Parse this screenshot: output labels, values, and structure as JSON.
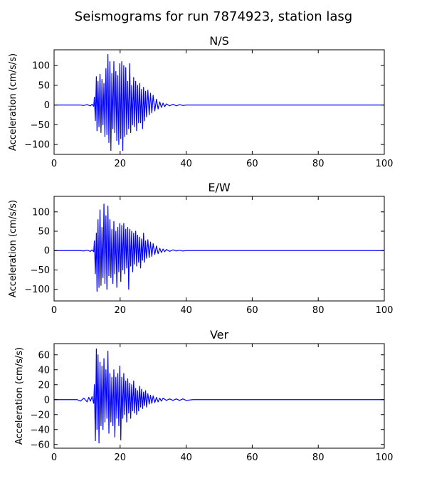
{
  "figure": {
    "title": "Seismograms for run 7874923, station lasg"
  },
  "chart_data": [
    {
      "type": "line",
      "title": "N/S",
      "xlabel": "",
      "ylabel": "Acceleration (cm/s/s)",
      "xlim": [
        0,
        100
      ],
      "ylim": [
        -125,
        140
      ],
      "xticks": [
        0,
        20,
        40,
        60,
        80,
        100
      ],
      "yticks": [
        -100,
        -50,
        0,
        50,
        100
      ],
      "color": "#0000ff",
      "grid": false,
      "series": [
        {
          "x": [
            0,
            8,
            9,
            10,
            11,
            11.5,
            12,
            12.2,
            12.5,
            12.8,
            13.0,
            13.3,
            13.6,
            13.9,
            14.2,
            14.5,
            14.8,
            15.1,
            15.4,
            15.7,
            16.0,
            16.3,
            16.6,
            16.9,
            17.2,
            17.5,
            17.8,
            18.1,
            18.4,
            18.7,
            19.0,
            19.3,
            19.6,
            19.9,
            20.2,
            20.5,
            20.8,
            21.1,
            21.4,
            21.7,
            22.0,
            22.3,
            22.6,
            22.9,
            23.2,
            23.5,
            23.8,
            24.1,
            24.4,
            24.7,
            25.0,
            25.3,
            25.6,
            25.9,
            26.2,
            26.5,
            26.8,
            27.1,
            27.4,
            27.7,
            28.0,
            28.4,
            28.8,
            29.2,
            29.6,
            30.0,
            30.5,
            31.0,
            31.5,
            32.0,
            32.5,
            33.0,
            33.5,
            34.0,
            35,
            36,
            37,
            38,
            39,
            40,
            42,
            45,
            100
          ],
          "y": [
            0,
            0,
            -1,
            1,
            -2,
            2,
            -3,
            20,
            -40,
            72,
            -65,
            60,
            -55,
            78,
            -70,
            65,
            -50,
            55,
            -80,
            92,
            -75,
            128,
            -95,
            110,
            -115,
            80,
            -60,
            110,
            -70,
            85,
            -90,
            75,
            -100,
            105,
            -85,
            110,
            -115,
            100,
            -80,
            95,
            -75,
            60,
            -60,
            105,
            -70,
            50,
            -50,
            70,
            -55,
            60,
            -65,
            50,
            -45,
            55,
            -45,
            40,
            -60,
            45,
            -40,
            35,
            -30,
            38,
            -25,
            30,
            -20,
            25,
            -15,
            15,
            -10,
            8,
            -6,
            5,
            -4,
            3,
            -2,
            2,
            -2,
            1,
            -1,
            0,
            0,
            0,
            0
          ]
        }
      ]
    },
    {
      "type": "line",
      "title": "E/W",
      "xlabel": "",
      "ylabel": "Acceleration (cm/s/s)",
      "xlim": [
        0,
        100
      ],
      "ylim": [
        -130,
        140
      ],
      "xticks": [
        0,
        20,
        40,
        60,
        80,
        100
      ],
      "yticks": [
        -100,
        -50,
        0,
        50,
        100
      ],
      "color": "#0000ff",
      "grid": false,
      "series": [
        {
          "x": [
            0,
            8,
            9,
            10,
            11,
            11.5,
            12,
            12.2,
            12.5,
            12.8,
            13.0,
            13.3,
            13.6,
            13.9,
            14.2,
            14.5,
            14.8,
            15.1,
            15.4,
            15.7,
            16.0,
            16.3,
            16.6,
            16.9,
            17.2,
            17.5,
            17.8,
            18.1,
            18.4,
            18.7,
            19.0,
            19.3,
            19.6,
            19.9,
            20.2,
            20.5,
            20.8,
            21.1,
            21.4,
            21.7,
            22.0,
            22.3,
            22.6,
            22.9,
            23.2,
            23.5,
            23.8,
            24.1,
            24.4,
            24.7,
            25.0,
            25.3,
            25.6,
            25.9,
            26.2,
            26.5,
            26.8,
            27.1,
            27.4,
            27.7,
            28.0,
            28.4,
            28.8,
            29.2,
            29.6,
            30.0,
            30.5,
            31.0,
            31.5,
            32.0,
            32.5,
            33.0,
            33.5,
            34.0,
            35,
            36,
            37,
            38,
            39,
            40,
            42,
            45,
            100
          ],
          "y": [
            0,
            0,
            -1,
            1,
            -2,
            2,
            -3,
            25,
            -60,
            45,
            -105,
            80,
            -95,
            105,
            -90,
            60,
            -70,
            120,
            -85,
            90,
            -100,
            115,
            -65,
            80,
            -70,
            55,
            -85,
            75,
            -60,
            50,
            -95,
            60,
            -55,
            70,
            -80,
            65,
            -50,
            70,
            -60,
            55,
            -45,
            60,
            -100,
            55,
            -40,
            50,
            -55,
            45,
            -35,
            50,
            -40,
            40,
            -30,
            35,
            -45,
            30,
            -25,
            45,
            -30,
            25,
            -20,
            28,
            -18,
            22,
            -15,
            18,
            -10,
            12,
            -8,
            6,
            -5,
            4,
            -3,
            3,
            -2,
            2,
            -1,
            1,
            -1,
            0,
            0,
            0,
            0
          ]
        }
      ]
    },
    {
      "type": "line",
      "title": "Ver",
      "xlabel": "",
      "ylabel": "Acceleration (cm/s/s)",
      "xlim": [
        0,
        100
      ],
      "ylim": [
        -65,
        75
      ],
      "xticks": [
        0,
        20,
        40,
        60,
        80,
        100
      ],
      "yticks": [
        -60,
        -40,
        -20,
        0,
        20,
        40,
        60
      ],
      "color": "#0000ff",
      "grid": false,
      "series": [
        {
          "x": [
            0,
            7,
            8,
            9,
            10,
            10.5,
            11,
            11.5,
            12,
            12.2,
            12.5,
            12.8,
            13.0,
            13.3,
            13.6,
            13.9,
            14.2,
            14.5,
            14.8,
            15.1,
            15.4,
            15.7,
            16.0,
            16.3,
            16.6,
            16.9,
            17.2,
            17.5,
            17.8,
            18.1,
            18.4,
            18.7,
            19.0,
            19.3,
            19.6,
            19.9,
            20.2,
            20.5,
            20.8,
            21.1,
            21.4,
            21.7,
            22.0,
            22.3,
            22.6,
            22.9,
            23.2,
            23.5,
            23.8,
            24.1,
            24.4,
            24.7,
            25.0,
            25.3,
            25.6,
            25.9,
            26.2,
            26.5,
            26.8,
            27.1,
            27.4,
            27.7,
            28.0,
            28.4,
            28.8,
            29.2,
            29.6,
            30.0,
            30.5,
            31.0,
            31.5,
            32.0,
            32.5,
            33.0,
            34,
            35,
            36,
            37,
            38,
            39,
            40,
            42,
            44,
            100
          ],
          "y": [
            0,
            0,
            -2,
            2,
            -3,
            3,
            -2,
            4,
            -5,
            20,
            -55,
            68,
            -40,
            60,
            -58,
            50,
            -35,
            45,
            -40,
            55,
            -30,
            40,
            -25,
            65,
            -45,
            35,
            -30,
            30,
            -35,
            40,
            -50,
            30,
            -25,
            35,
            -35,
            45,
            -54,
            30,
            -25,
            35,
            -20,
            25,
            -30,
            28,
            -18,
            22,
            -25,
            20,
            -15,
            25,
            -18,
            15,
            -20,
            12,
            -15,
            18,
            -10,
            14,
            -12,
            10,
            -8,
            12,
            -10,
            8,
            -6,
            6,
            -5,
            5,
            -4,
            3,
            -3,
            2,
            -2,
            2,
            -1,
            1,
            -1,
            1,
            -1,
            1,
            -1,
            0,
            0,
            0
          ]
        }
      ]
    }
  ]
}
